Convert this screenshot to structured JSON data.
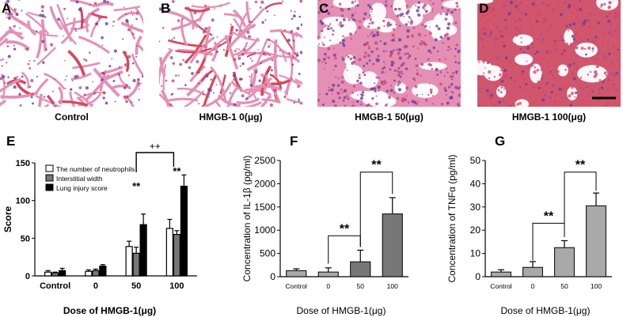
{
  "micro_panels": [
    {
      "letter": "A",
      "caption": "Control",
      "tone": "sparse"
    },
    {
      "letter": "B",
      "caption": "HMGB-1 0(μg)",
      "tone": "sparse-red"
    },
    {
      "letter": "C",
      "caption": "HMGB-1 50(μg)",
      "tone": "dense"
    },
    {
      "letter": "D",
      "caption": "HMGB-1 100(μg)",
      "tone": "very-dense"
    }
  ],
  "colors": {
    "tissue_pink": "#e58fb4",
    "tissue_dark": "#b24a8a",
    "nuclei": "#6b3f9e",
    "blood_red": "#d9475a",
    "bar_gray": "#a0a0a0",
    "bar_dark": "#707070",
    "bar_black": "#000000"
  },
  "chart_data": [
    {
      "panel": "E",
      "type": "bar",
      "ylabel": "Score",
      "xlabel": "Dose of HMGB-1(μg)",
      "categories": [
        "Control",
        "0",
        "50",
        "100"
      ],
      "ylim": [
        0,
        150
      ],
      "yticks": [
        "0",
        "50",
        "100",
        "150"
      ],
      "legend_position": "top-left",
      "series": [
        {
          "name": "The number of neutrophils",
          "fill": "#ffffff",
          "values": [
            5,
            6,
            39,
            63
          ],
          "errors": [
            2,
            2,
            7,
            12
          ]
        },
        {
          "name": "Interstitial width",
          "fill": "#777777",
          "values": [
            4,
            7,
            30,
            55
          ],
          "errors": [
            1,
            2,
            8,
            5
          ]
        },
        {
          "name": "Lung injury score",
          "fill": "#000000",
          "values": [
            7,
            13,
            68,
            119
          ],
          "errors": [
            3,
            2,
            14,
            15
          ]
        }
      ],
      "annotations": {
        "star_50": "**",
        "star_100": "**",
        "bracket_label": "++"
      }
    },
    {
      "panel": "F",
      "type": "bar",
      "ylabel": "Concentration of IL-1β (pg/ml)",
      "xlabel": "Dose of HMGB-1(μg)",
      "categories": [
        "Control",
        "0",
        "50",
        "100"
      ],
      "ylim": [
        0,
        2500
      ],
      "yticks": [
        "0",
        "500",
        "1000",
        "1500",
        "2000",
        "2500"
      ],
      "values": [
        130,
        100,
        320,
        1350
      ],
      "errors": [
        40,
        90,
        250,
        350
      ],
      "fills": [
        "#a9a9a9",
        "#a9a9a9",
        "#777777",
        "#777777"
      ],
      "annotations": {
        "bracket_low": "**",
        "bracket_high": "**"
      }
    },
    {
      "panel": "G",
      "type": "bar",
      "ylabel": "Concentration of TNFα (pg/ml)",
      "xlabel": "Dose of HMGB-1(μg)",
      "categories": [
        "Control",
        "0",
        "50",
        "100"
      ],
      "ylim": [
        0,
        50
      ],
      "yticks": [
        "0",
        "10",
        "20",
        "30",
        "40",
        "50"
      ],
      "values": [
        2,
        4,
        12.5,
        30.5
      ],
      "errors": [
        1,
        2.5,
        3,
        5.5
      ],
      "fills": [
        "#a9a9a9",
        "#a9a9a9",
        "#a9a9a9",
        "#a9a9a9"
      ],
      "annotations": {
        "bracket_low": "**",
        "bracket_high": "**"
      }
    }
  ]
}
